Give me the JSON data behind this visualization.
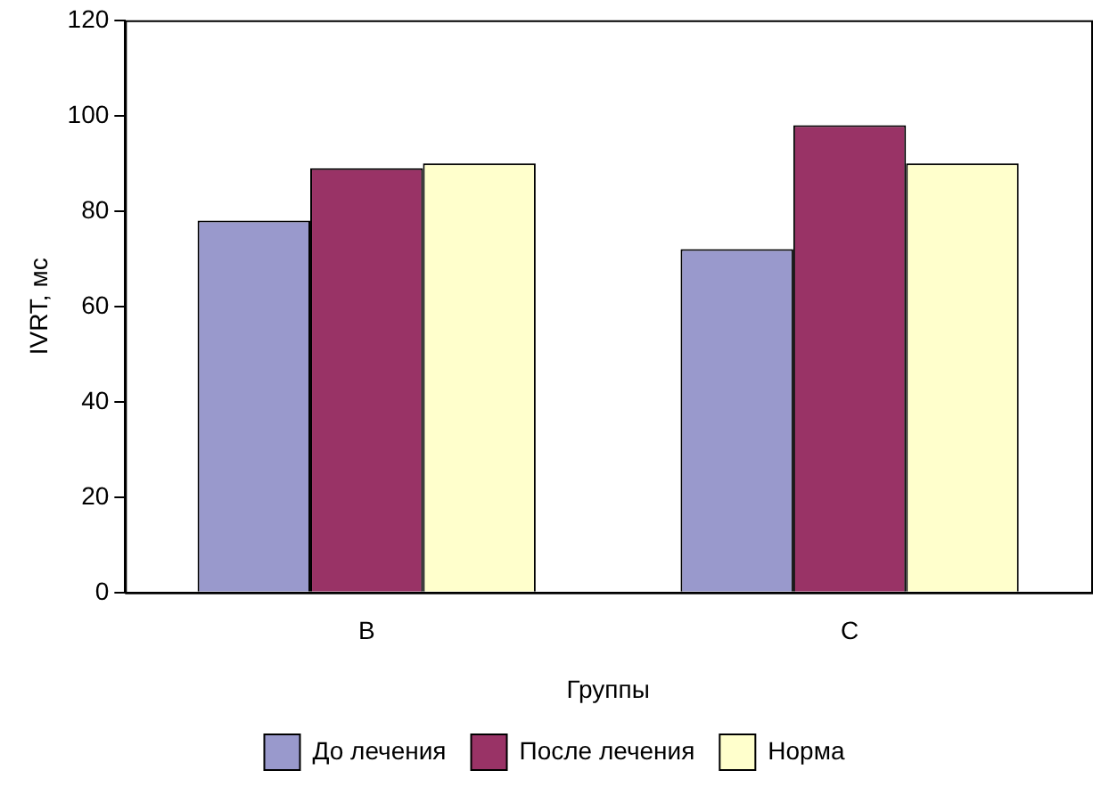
{
  "chart_data": {
    "type": "bar",
    "xlabel": "Группы",
    "ylabel": "IVRT, мс",
    "categories": [
      "B",
      "C"
    ],
    "series": [
      {
        "name": "До лечения",
        "color": "#9999cc",
        "values": [
          78,
          72
        ]
      },
      {
        "name": "После лечения",
        "color": "#993366",
        "values": [
          89,
          98
        ]
      },
      {
        "name": "Норма",
        "color": "#ffffcc",
        "values": [
          90,
          90
        ]
      }
    ],
    "ylim": [
      0,
      120
    ],
    "yticks": [
      0,
      20,
      40,
      60,
      80,
      100,
      120
    ],
    "grid": false,
    "legend": "bottom"
  }
}
